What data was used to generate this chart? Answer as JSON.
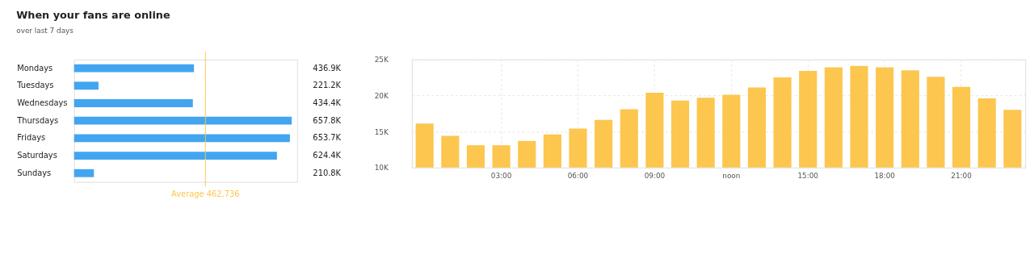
{
  "chart_data": [
    {
      "type": "bar",
      "orientation": "horizontal",
      "title": "When your fans are online",
      "subtitle": "over last 7 days",
      "categories": [
        "Mondays",
        "Tuesdays",
        "Wednesdays",
        "Thursdays",
        "Fridays",
        "Saturdays",
        "Sundays"
      ],
      "values": [
        436.9,
        221.2,
        434.4,
        657.8,
        653.7,
        624.4,
        210.8
      ],
      "value_labels": [
        "436.9K",
        "221.2K",
        "434.4K",
        "657.8K",
        "653.7K",
        "624.4K",
        "210.8K"
      ],
      "color": "#42a5f0",
      "xlim": [
        166,
        670
      ],
      "tick_labels": "y",
      "grid": false,
      "ref_lines": [
        {
          "axis": "x",
          "value": 462.736,
          "label": "Average 462,736",
          "color": "#fcc64f"
        }
      ]
    },
    {
      "type": "bar",
      "categories": [
        null,
        null,
        null,
        "03:00",
        null,
        null,
        "06:00",
        null,
        null,
        "09:00",
        null,
        null,
        "noon",
        null,
        null,
        "15:00",
        null,
        null,
        "18:00",
        null,
        null,
        "21:00",
        null,
        null
      ],
      "values": [
        16.1,
        14.4,
        13.1,
        13.1,
        13.7,
        14.6,
        15.4,
        16.6,
        18.1,
        20.4,
        19.3,
        19.7,
        20.1,
        21.1,
        22.5,
        23.4,
        23.9,
        24.1,
        23.9,
        23.5,
        22.6,
        21.2,
        19.6,
        18.0
      ],
      "color": "#fcc64f",
      "ylim": [
        10,
        25
      ],
      "yticks": [
        {
          "value": 10,
          "label": "10K"
        },
        {
          "value": 15,
          "label": "15K"
        },
        {
          "value": 20,
          "label": "20K"
        },
        {
          "value": 25,
          "label": "25K"
        }
      ],
      "grid": true
    }
  ]
}
